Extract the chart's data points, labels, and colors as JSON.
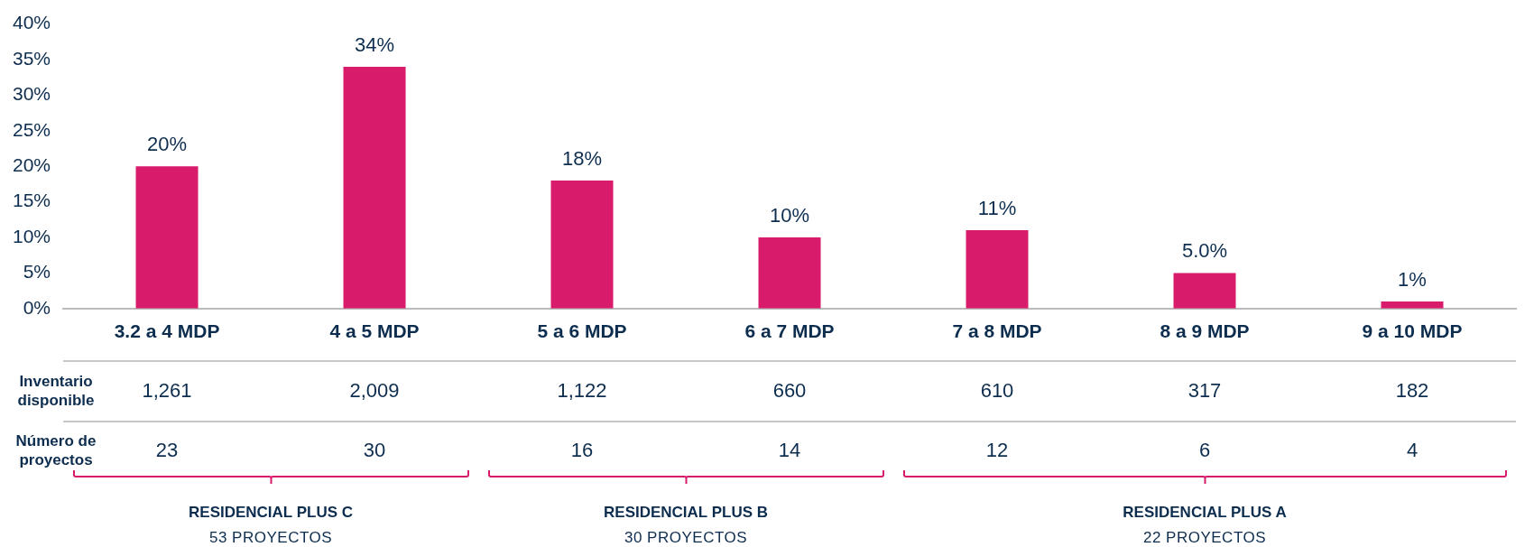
{
  "chart_data": {
    "type": "bar",
    "categories": [
      "3.2 a 4 MDP",
      "4 a 5 MDP",
      "5 a 6 MDP",
      "6 a 7 MDP",
      "7 a 8 MDP",
      "8 a 9 MDP",
      "9 a 10 MDP"
    ],
    "values": [
      20,
      34,
      18,
      10,
      11,
      5,
      1
    ],
    "value_labels": [
      "20%",
      "34%",
      "18%",
      "10%",
      "11%",
      "5.0%",
      "1%"
    ],
    "color": "#d81b6b",
    "ylim": [
      0,
      40
    ],
    "yticks": [
      {
        "value": 0,
        "label": "0%"
      },
      {
        "value": 5,
        "label": "5%"
      },
      {
        "value": 10,
        "label": "10%"
      },
      {
        "value": 15,
        "label": "15%"
      },
      {
        "value": 20,
        "label": "20%"
      },
      {
        "value": 25,
        "label": "25%"
      },
      {
        "value": 30,
        "label": "30%"
      },
      {
        "value": 35,
        "label": "35%"
      },
      {
        "value": 40,
        "label": "40%"
      }
    ],
    "grid": false,
    "legend": false,
    "annotations": [
      "Inventario disponible",
      "Número de proyectos",
      "1,261",
      "2,009",
      "1,122",
      "660",
      "610",
      "317",
      "182",
      "23",
      "30",
      "16",
      "14",
      "12",
      "6",
      "4",
      "RESIDENCIAL PLUS C",
      "53 PROYECTOS",
      "RESIDENCIAL PLUS B",
      "30 PROYECTOS",
      "RESIDENCIAL PLUS A",
      "22 PROYECTOS"
    ]
  }
}
